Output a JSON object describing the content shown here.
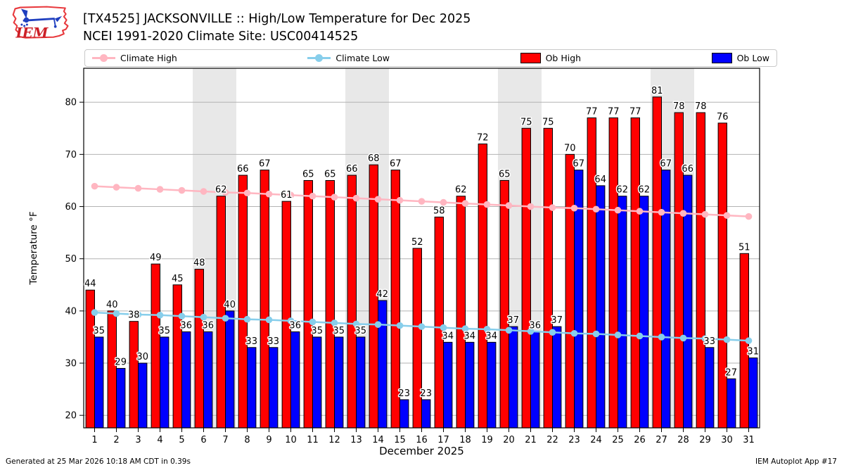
{
  "header": {
    "title": "[TX4525] JACKSONVILLE :: High/Low Temperature for Dec 2025",
    "subtitle": "NCEI 1991-2020 Climate Site: USC00414525",
    "logo_text": "IEM"
  },
  "legend": {
    "items": [
      {
        "label": "Climate High",
        "type": "line",
        "color": "#ffb6c1"
      },
      {
        "label": "Climate Low",
        "type": "line",
        "color": "#87ceeb"
      },
      {
        "label": "Ob High",
        "type": "bar",
        "color": "#ff0000"
      },
      {
        "label": "Ob Low",
        "type": "bar",
        "color": "#0000ff"
      }
    ]
  },
  "chart_data": {
    "type": "bar",
    "title": "[TX4525] JACKSONVILLE :: High/Low Temperature for Dec 2025",
    "subtitle": "NCEI 1991-2020 Climate Site: USC00414525",
    "xlabel": "December 2025",
    "ylabel": "Temperature °F",
    "x": [
      1,
      2,
      3,
      4,
      5,
      6,
      7,
      8,
      9,
      10,
      11,
      12,
      13,
      14,
      15,
      16,
      17,
      18,
      19,
      20,
      21,
      22,
      23,
      24,
      25,
      26,
      27,
      28,
      29,
      30,
      31
    ],
    "xlim": [
      0.5,
      31.5
    ],
    "ylim": [
      17.6,
      86.5
    ],
    "yticks": [
      20,
      30,
      40,
      50,
      60,
      70,
      80
    ],
    "grid": true,
    "grid_color": "#b3b3b3",
    "weekend_band_color": "#e8e8e8",
    "weekend_bands": [
      [
        5.5,
        7.5
      ],
      [
        12.5,
        14.5
      ],
      [
        19.5,
        21.5
      ],
      [
        26.5,
        28.5
      ]
    ],
    "legend_position": "top",
    "bar_labels": true,
    "series": [
      {
        "name": "Climate High",
        "type": "line",
        "color": "#ffb6c1",
        "values": [
          63.9,
          63.7,
          63.5,
          63.3,
          63.1,
          62.9,
          62.7,
          62.6,
          62.4,
          62.2,
          62.0,
          61.8,
          61.6,
          61.4,
          61.2,
          61.0,
          60.8,
          60.6,
          60.4,
          60.2,
          60.0,
          59.8,
          59.7,
          59.5,
          59.3,
          59.1,
          58.9,
          58.7,
          58.5,
          58.3,
          58.1
        ]
      },
      {
        "name": "Climate Low",
        "type": "line",
        "color": "#87ceeb",
        "values": [
          39.7,
          39.5,
          39.3,
          39.2,
          39.0,
          38.8,
          38.6,
          38.4,
          38.3,
          38.1,
          37.9,
          37.7,
          37.5,
          37.4,
          37.2,
          37.0,
          36.8,
          36.6,
          36.5,
          36.3,
          36.1,
          35.9,
          35.7,
          35.6,
          35.4,
          35.2,
          35.0,
          34.8,
          34.7,
          34.5,
          34.3
        ]
      },
      {
        "name": "Ob High",
        "type": "bar",
        "color": "#ff0000",
        "values": [
          44,
          40,
          38,
          49,
          45,
          48,
          62,
          66,
          67,
          61,
          65,
          65,
          66,
          68,
          67,
          52,
          58,
          62,
          72,
          65,
          75,
          75,
          70,
          77,
          77,
          77,
          81,
          78,
          78,
          76,
          51
        ]
      },
      {
        "name": "Ob Low",
        "type": "bar",
        "color": "#0000ff",
        "values": [
          35,
          29,
          30,
          35,
          36,
          36,
          40,
          33,
          33,
          36,
          35,
          35,
          35,
          42,
          23,
          23,
          34,
          34,
          34,
          37,
          36,
          37,
          67,
          64,
          62,
          62,
          67,
          66,
          33,
          27,
          31
        ]
      }
    ]
  },
  "footer": {
    "generated": "Generated at 25 Mar 2026 10:18 AM CDT in 0.39s",
    "app": "IEM Autoplot App #17"
  }
}
